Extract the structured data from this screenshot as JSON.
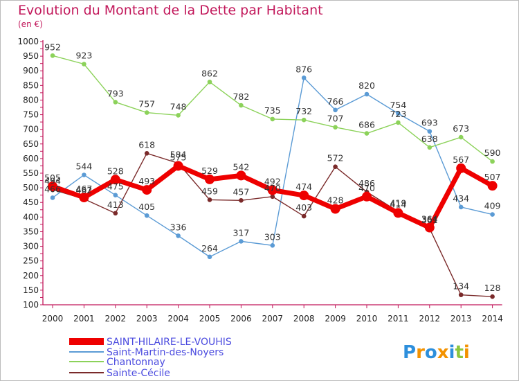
{
  "title": "Evolution du Montant de la Dette par Habitant",
  "unit": "(en €)",
  "logo_text": "Proxiti",
  "chart_data": {
    "type": "line",
    "title": "Evolution du Montant de la Dette par Habitant",
    "ylabel": "(en €)",
    "ylim": [
      100,
      1000
    ],
    "yticks": [
      100,
      150,
      200,
      250,
      300,
      350,
      400,
      450,
      500,
      550,
      600,
      650,
      700,
      750,
      800,
      850,
      900,
      950,
      1000
    ],
    "grid": false,
    "legend_position": "bottom-left",
    "categories": [
      "2000",
      "2001",
      "2002",
      "2003",
      "2004",
      "2005",
      "2006",
      "2007",
      "2008",
      "2009",
      "2010",
      "2011",
      "2012",
      "2013",
      "2014"
    ],
    "series": [
      {
        "name": "SAINT-HILAIRE-LE-VOUHIS",
        "color": "#ee0000",
        "values": [
          505,
          467,
          528,
          493,
          575,
          529,
          542,
          492,
          474,
          428,
          470,
          414,
          364,
          567,
          507
        ]
      },
      {
        "name": "Saint-Martin-des-Noyers",
        "color": "#5b9bd5",
        "values": [
          466,
          544,
          475,
          405,
          336,
          264,
          317,
          303,
          876,
          766,
          820,
          754,
          693,
          434,
          409
        ]
      },
      {
        "name": "Chantonnay",
        "color": "#8cd25a",
        "values": [
          952,
          923,
          793,
          757,
          748,
          862,
          782,
          735,
          732,
          707,
          686,
          723,
          638,
          673,
          590
        ]
      },
      {
        "name": "Sainte-Cécile",
        "color": "#7a2a2a",
        "values": [
          494,
          462,
          413,
          618,
          584,
          459,
          457,
          470,
          403,
          572,
          486,
          419,
          361,
          134,
          128
        ]
      }
    ]
  }
}
